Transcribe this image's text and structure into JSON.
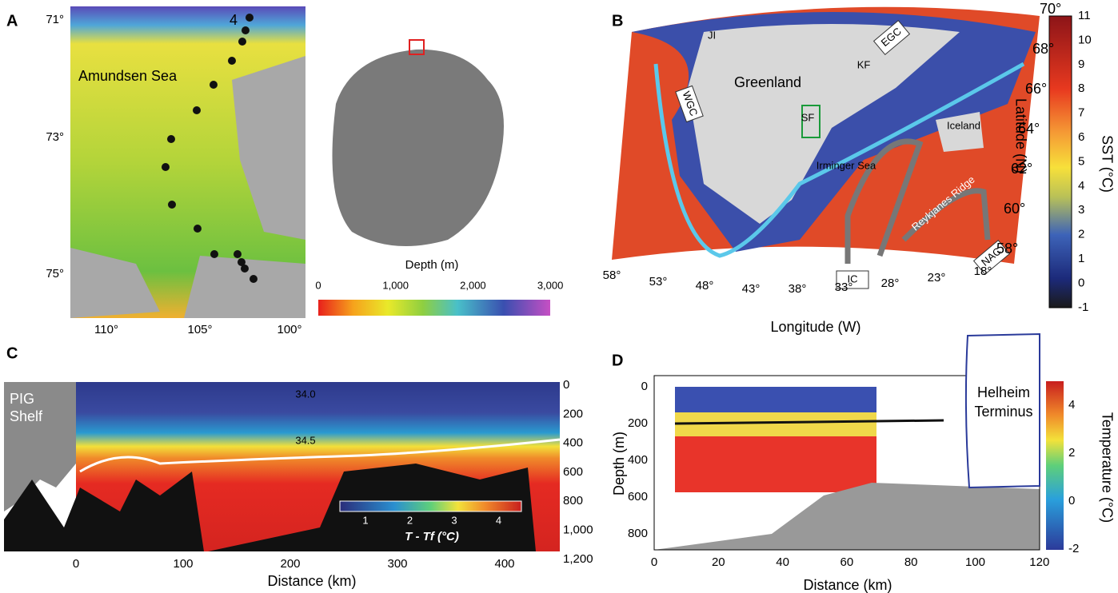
{
  "panels": {
    "a": {
      "letter": "A",
      "place": "Amundsen Sea",
      "station": "4",
      "lat_labels": [
        "71°",
        "73°",
        "75°"
      ],
      "lon_labels": [
        "110°",
        "105°",
        "100°"
      ],
      "depth_title": "Depth (m)",
      "depth_ticks": [
        "0",
        "1,000",
        "2,000",
        "3,000"
      ]
    },
    "b": {
      "letter": "B",
      "region": "Greenland",
      "places": [
        "JI",
        "KF",
        "SF",
        "Iceland"
      ],
      "sea": "Irminger Sea",
      "ridge": "Reykjanes Ridge",
      "currents": [
        "EGC",
        "WGC",
        "IC",
        "NAC"
      ],
      "lat_labels": [
        "70°",
        "68°",
        "66°",
        "64°",
        "62°",
        "60°",
        "58°"
      ],
      "lon_labels": [
        "58°",
        "53°",
        "48°",
        "43°",
        "38°",
        "33°",
        "28°",
        "23°",
        "18°"
      ],
      "x_title": "Longitude (W)",
      "y_title": "Latitude (N)",
      "cbar_title": "SST (°C)",
      "cbar_ticks": [
        "11",
        "10",
        "9",
        "8",
        "7",
        "6",
        "5",
        "4",
        "3",
        "2",
        "1",
        "0",
        "-1"
      ]
    },
    "c": {
      "letter": "C",
      "shelf": [
        "PIG",
        "Shelf"
      ],
      "contours": [
        "34.0",
        "34.5"
      ],
      "x_ticks": [
        "0",
        "100",
        "200",
        "300",
        "400"
      ],
      "x_title": "Distance (km)",
      "y_ticks": [
        "0",
        "200",
        "400",
        "600",
        "800",
        "1,000",
        "1,200"
      ],
      "cbar_ticks": [
        "1",
        "2",
        "3",
        "4"
      ],
      "cbar_title": "T - Tf (°C)"
    },
    "d": {
      "letter": "D",
      "terminus": [
        "Helheim",
        "Terminus"
      ],
      "x_ticks": [
        "0",
        "20",
        "40",
        "60",
        "80",
        "100",
        "120"
      ],
      "x_title": "Distance (km)",
      "y_ticks": [
        "0",
        "200",
        "400",
        "600",
        "800"
      ],
      "y_title": "Depth (m)",
      "cbar_ticks": [
        "4",
        "2",
        "0",
        "-2"
      ],
      "cbar_title": "Temperature (°C)"
    }
  }
}
